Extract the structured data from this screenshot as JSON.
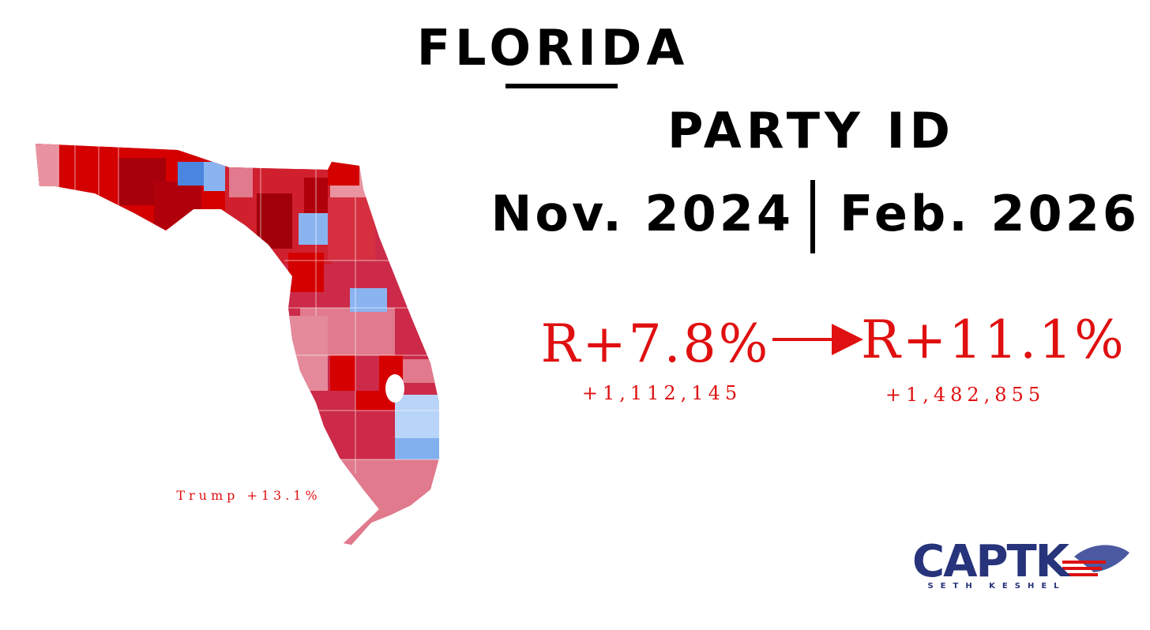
{
  "header": {
    "title": "FLORIDA",
    "subtitle": "PARTY ID"
  },
  "periods": {
    "before": "Nov. 2024",
    "after": "Feb. 2026"
  },
  "comparison": {
    "before": {
      "margin": "R+7.8%",
      "votes": "+1,112,145"
    },
    "after": {
      "margin": "R+11.1%",
      "votes": "+1,482,855"
    }
  },
  "map": {
    "caption": "Trump +13.1%"
  },
  "logo": {
    "name": "CAPTK",
    "tagline": "SETH KESHEL"
  }
}
